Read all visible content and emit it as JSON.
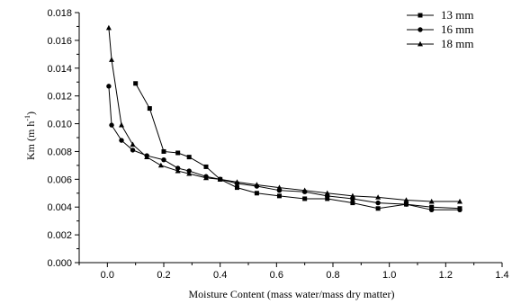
{
  "chart_data": {
    "type": "line",
    "title": "",
    "xlabel": "Moisture Content (mass water/mass dry matter)",
    "ylabel": "Km (m h",
    "ylabel_sup": "-1",
    "ylabel_tail": ")",
    "xlim": [
      -0.1,
      1.4
    ],
    "ylim": [
      0,
      0.018
    ],
    "x_ticks": [
      "0.0",
      "0.2",
      "0.4",
      "0.6",
      "0.8",
      "1.0",
      "1.2",
      "1.4"
    ],
    "x_tick_values": [
      0,
      0.2,
      0.4,
      0.6,
      0.8,
      1.0,
      1.2,
      1.4
    ],
    "y_ticks": [
      "0.000",
      "0.002",
      "0.004",
      "0.006",
      "0.008",
      "0.010",
      "0.012",
      "0.014",
      "0.016",
      "0.018"
    ],
    "y_tick_values": [
      0,
      0.002,
      0.004,
      0.006,
      0.008,
      0.01,
      0.012,
      0.014,
      0.016,
      0.018
    ],
    "grid": false,
    "legend_position": "top-right",
    "series": [
      {
        "name": "13 mm",
        "marker": "square",
        "color": "#000000",
        "points": [
          [
            0.1,
            0.0129
          ],
          [
            0.15,
            0.0111
          ],
          [
            0.2,
            0.008
          ],
          [
            0.25,
            0.0079
          ],
          [
            0.29,
            0.0076
          ],
          [
            0.35,
            0.0069
          ],
          [
            0.4,
            0.006
          ],
          [
            0.46,
            0.0054
          ],
          [
            0.53,
            0.005
          ],
          [
            0.61,
            0.0048
          ],
          [
            0.7,
            0.0046
          ],
          [
            0.78,
            0.0046
          ],
          [
            0.87,
            0.0043
          ],
          [
            0.96,
            0.0039
          ],
          [
            1.06,
            0.0042
          ],
          [
            1.15,
            0.004
          ],
          [
            1.25,
            0.0039
          ]
        ]
      },
      {
        "name": "16 mm",
        "marker": "circle",
        "color": "#000000",
        "points": [
          [
            0.005,
            0.0127
          ],
          [
            0.015,
            0.0099
          ],
          [
            0.05,
            0.0088
          ],
          [
            0.09,
            0.0081
          ],
          [
            0.14,
            0.0077
          ],
          [
            0.2,
            0.0074
          ],
          [
            0.25,
            0.0068
          ],
          [
            0.29,
            0.0066
          ],
          [
            0.35,
            0.0062
          ],
          [
            0.4,
            0.006
          ],
          [
            0.46,
            0.0057
          ],
          [
            0.53,
            0.0055
          ],
          [
            0.61,
            0.0052
          ],
          [
            0.7,
            0.0051
          ],
          [
            0.78,
            0.0048
          ],
          [
            0.87,
            0.0046
          ],
          [
            0.96,
            0.0043
          ],
          [
            1.06,
            0.0042
          ],
          [
            1.15,
            0.0038
          ],
          [
            1.25,
            0.0038
          ]
        ]
      },
      {
        "name": "18 mm",
        "marker": "triangle",
        "color": "#000000",
        "points": [
          [
            0.005,
            0.0169
          ],
          [
            0.015,
            0.0146
          ],
          [
            0.05,
            0.0099
          ],
          [
            0.09,
            0.0085
          ],
          [
            0.14,
            0.0076
          ],
          [
            0.19,
            0.007
          ],
          [
            0.25,
            0.0066
          ],
          [
            0.29,
            0.0064
          ],
          [
            0.35,
            0.0061
          ],
          [
            0.4,
            0.006
          ],
          [
            0.46,
            0.0058
          ],
          [
            0.53,
            0.0056
          ],
          [
            0.61,
            0.0054
          ],
          [
            0.7,
            0.0052
          ],
          [
            0.78,
            0.005
          ],
          [
            0.87,
            0.0048
          ],
          [
            0.96,
            0.0047
          ],
          [
            1.06,
            0.0045
          ],
          [
            1.15,
            0.0044
          ],
          [
            1.25,
            0.0044
          ]
        ]
      }
    ]
  }
}
